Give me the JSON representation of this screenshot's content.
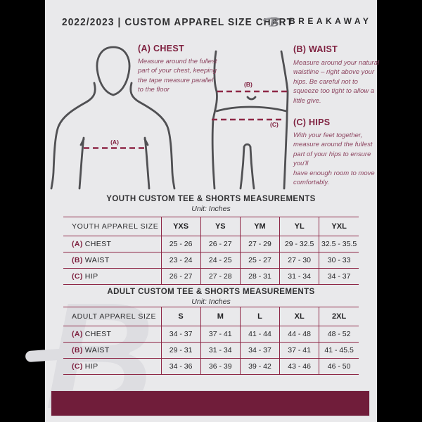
{
  "header": {
    "title": "2022/2023  |  CUSTOM APPAREL SIZE CHART",
    "brand": "BREAKAWAY",
    "logo_letter": "B"
  },
  "instructions": [
    {
      "heading": "(A) CHEST",
      "body": "Measure around the fullest part of your chest, keeping the tape measure parallel to the floor"
    },
    {
      "heading": "(B) WAIST",
      "body": "Measure around your natural waistline – right above your hips. Be careful not to squeeze too tight to allow a little give."
    },
    {
      "heading": "(C) HIPS",
      "body": "With your feet together, measure around the fullest part of your hips to ensure you'll\nhave enough room to move comfortably."
    }
  ],
  "diagram": {
    "chest_label": "(A)",
    "waist_label": "(B)",
    "hips_label": "(C)"
  },
  "tables": [
    {
      "title": "YOUTH CUSTOM TEE & SHORTS MEASUREMENTS",
      "unit": "Unit: Inches",
      "header": [
        "YOUTH APPAREL SIZE",
        "YXS",
        "YS",
        "YM",
        "YL",
        "YXL"
      ],
      "rows": [
        {
          "label_prefix": "(A)",
          "label": "CHEST",
          "values": [
            "25 - 26",
            "26 - 27",
            "27 - 29",
            "29 - 32.5",
            "32.5 - 35.5"
          ]
        },
        {
          "label_prefix": "(B)",
          "label": "WAIST",
          "values": [
            "23 - 24",
            "24 - 25",
            "25 - 27",
            "27 - 30",
            "30 - 33"
          ]
        },
        {
          "label_prefix": "(C)",
          "label": "HIP",
          "values": [
            "26 - 27",
            "27 - 28",
            "28 - 31",
            "31 - 34",
            "34 - 37"
          ]
        }
      ]
    },
    {
      "title": "ADULT CUSTOM TEE & SHORTS MEASUREMENTS",
      "unit": "Unit: Inches",
      "header": [
        "ADULT APPAREL SIZE",
        "S",
        "M",
        "L",
        "XL",
        "2XL"
      ],
      "rows": [
        {
          "label_prefix": "(A)",
          "label": "CHEST",
          "values": [
            "34 - 37",
            "37 - 41",
            "41 - 44",
            "44 - 48",
            "48 - 52"
          ]
        },
        {
          "label_prefix": "(B)",
          "label": "WAIST",
          "values": [
            "29 - 31",
            "31 - 34",
            "34 - 37",
            "37 - 41",
            "41 - 45.5"
          ]
        },
        {
          "label_prefix": "(C)",
          "label": "HIP",
          "values": [
            "34 - 36",
            "36 - 39",
            "39 - 42",
            "43 - 46",
            "46 - 50"
          ]
        }
      ]
    }
  ],
  "colors": {
    "canvas_bg": "#000000",
    "page_bg": "#e9e9eb",
    "maroon": "#7e1f3e",
    "maroon_body_text": "#8d4560",
    "table_line": "#8e2746",
    "footer_bar": "#701d3a",
    "figure_outline": "#505053",
    "text_dark": "#2d2d2f"
  }
}
